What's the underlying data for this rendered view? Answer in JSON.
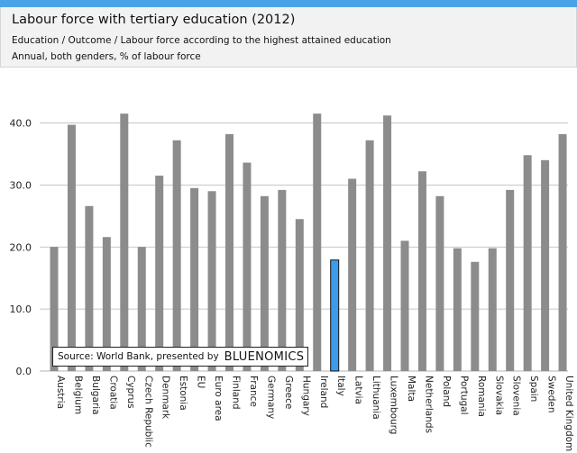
{
  "header": {
    "title": "Labour force with tertiary education (2012)",
    "subtitle1": "Education / Outcome / Labour force according to the highest attained education",
    "subtitle2": "Annual, both genders, % of labour force"
  },
  "source": {
    "text": "Source: World Bank, presented by",
    "brand_part1": "BLUE",
    "brand_part2": "NOMICS"
  },
  "colors": {
    "bar": "#8c8c8c",
    "highlight": "#3d9be9",
    "grid": "#b3b3b3",
    "accent_bar": "#4aa3e8"
  },
  "chart_data": {
    "type": "bar",
    "title": "Labour force with tertiary education (2012)",
    "xlabel": "",
    "ylabel": "",
    "ylim": [
      0,
      40
    ],
    "yticks": [
      "0.0",
      "10.0",
      "20.0",
      "30.0",
      "40.0"
    ],
    "ytick_values": [
      0,
      10,
      20,
      30,
      40
    ],
    "grid": true,
    "highlight": "Italy",
    "categories": [
      "Austria",
      "Belgium",
      "Bulgaria",
      "Croatia",
      "Cyprus",
      "Czech Republic",
      "Denmark",
      "Estonia",
      "EU",
      "Euro area",
      "Finland",
      "France",
      "Germany",
      "Greece",
      "Hungary",
      "Ireland",
      "Italy",
      "Latvia",
      "Lithuania",
      "Luxembourg",
      "Malta",
      "Netherlands",
      "Poland",
      "Portugal",
      "Romania",
      "Slovakia",
      "Slovenia",
      "Spain",
      "Sweden",
      "United Kingdom"
    ],
    "values": [
      20.0,
      39.7,
      26.6,
      21.6,
      41.5,
      20.0,
      31.5,
      37.2,
      29.5,
      29.0,
      38.2,
      33.6,
      28.2,
      29.2,
      24.5,
      41.5,
      17.9,
      31.0,
      37.2,
      41.2,
      21.0,
      32.2,
      28.2,
      19.8,
      17.6,
      19.8,
      29.2,
      34.8,
      34.0,
      38.2
    ]
  }
}
